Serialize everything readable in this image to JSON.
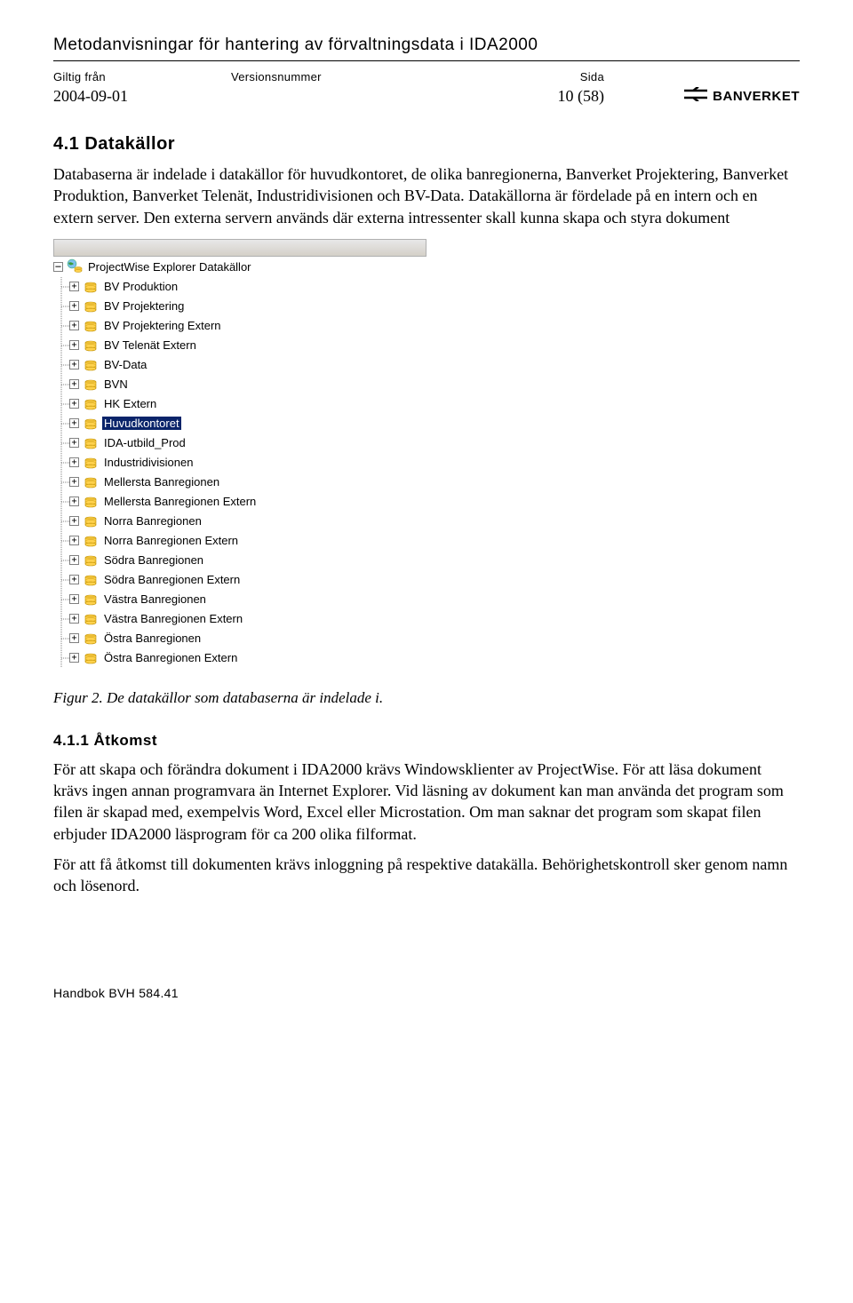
{
  "header": {
    "doc_title": "Metodanvisningar för hantering av förvaltningsdata i IDA2000",
    "col1_label": "Giltig från",
    "col2_label": "Versionsnummer",
    "col3_label": "Sida",
    "col1_value": "2004-09-01",
    "col2_value": "",
    "col3_value": "10 (58)",
    "logo_text": "BANVERKET"
  },
  "section": {
    "heading": "4.1 Datakällor",
    "para1": "Databaserna är indelade i datakällor för huvudkontoret, de olika banregionerna, Banverket Projektering, Banverket Produktion, Banverket Telenät, Industridivisionen och BV-Data. Datakällorna är fördelade på en intern och en extern server. Den externa servern används där externa intressenter skall kunna skapa och styra dokument"
  },
  "tree": {
    "root_label": "ProjectWise Explorer Datakällor",
    "items": [
      {
        "label": "BV Produktion",
        "selected": false
      },
      {
        "label": "BV Projektering",
        "selected": false
      },
      {
        "label": "BV Projektering Extern",
        "selected": false
      },
      {
        "label": "BV Telenät Extern",
        "selected": false
      },
      {
        "label": "BV-Data",
        "selected": false
      },
      {
        "label": "BVN",
        "selected": false
      },
      {
        "label": "HK Extern",
        "selected": false
      },
      {
        "label": "Huvudkontoret",
        "selected": true
      },
      {
        "label": "IDA-utbild_Prod",
        "selected": false
      },
      {
        "label": "Industridivisionen",
        "selected": false
      },
      {
        "label": "Mellersta Banregionen",
        "selected": false
      },
      {
        "label": "Mellersta Banregionen Extern",
        "selected": false
      },
      {
        "label": "Norra Banregionen",
        "selected": false
      },
      {
        "label": "Norra Banregionen Extern",
        "selected": false
      },
      {
        "label": "Södra Banregionen",
        "selected": false
      },
      {
        "label": "Södra Banregionen Extern",
        "selected": false
      },
      {
        "label": "Västra Banregionen",
        "selected": false
      },
      {
        "label": "Västra Banregionen Extern",
        "selected": false
      },
      {
        "label": "Östra Banregionen",
        "selected": false
      },
      {
        "label": "Östra Banregionen Extern",
        "selected": false
      }
    ]
  },
  "figure": {
    "caption": "Figur 2. De datakällor som databaserna är indelade i."
  },
  "subsection": {
    "heading": "4.1.1  Åtkomst",
    "para1": "För att skapa och förändra dokument i IDA2000 krävs Windowsklienter av ProjectWise. För att läsa dokument krävs ingen annan programvara än Internet Explorer. Vid läsning av dokument kan man använda det program som filen är skapad med, exempelvis Word, Excel eller Microstation. Om man saknar det program som skapat filen erbjuder IDA2000 läsprogram för ca 200 olika filformat.",
    "para2": "För att få åtkomst till dokumenten krävs inloggning på respektive datakälla. Behörighetskontroll sker genom  namn och lösenord."
  },
  "footer": {
    "text": "Handbok BVH 584.41"
  }
}
